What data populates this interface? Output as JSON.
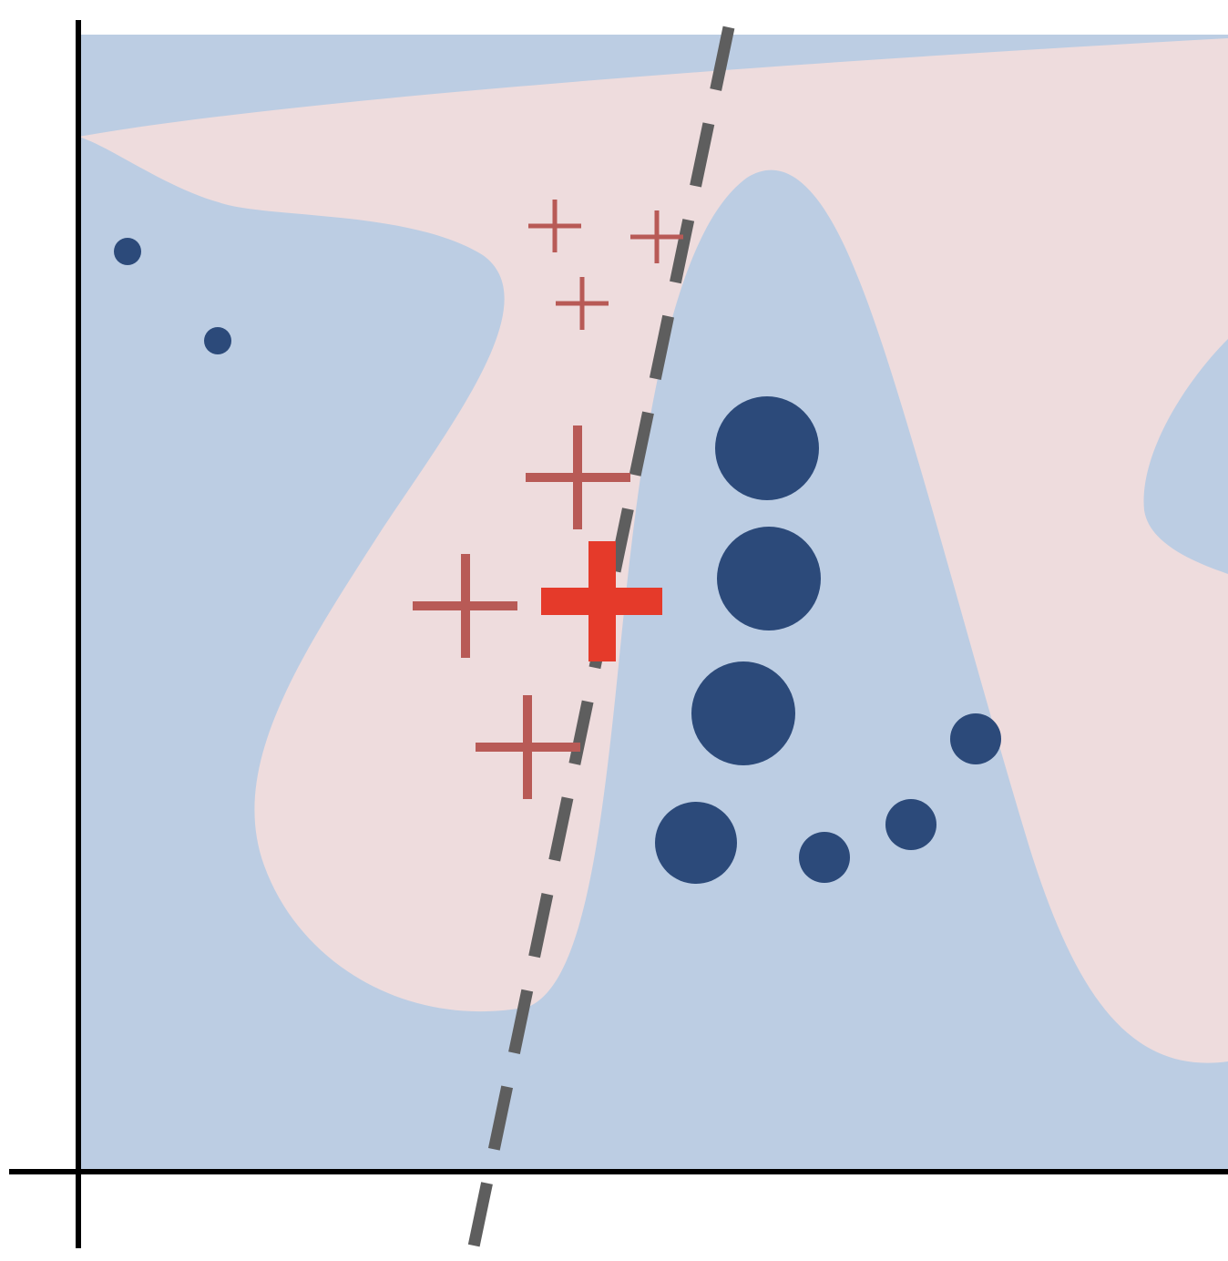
{
  "figure": {
    "description_free": true,
    "colors": {
      "background_region": "#bccde3",
      "positive_region": "#eedcdd",
      "negative_marker": "#2c4a7a",
      "positive_marker": "#b85a56",
      "query_marker": "#e53a2a",
      "boundary_line": "#5e5e5e",
      "axes": "#000000"
    },
    "regions": [
      {
        "class": "positive",
        "shape": "main-lobe"
      },
      {
        "class": "positive",
        "shape": "right-lobe"
      }
    ],
    "negative_points": [
      {
        "size": "small"
      },
      {
        "size": "small"
      },
      {
        "size": "large"
      },
      {
        "size": "large"
      },
      {
        "size": "large"
      },
      {
        "size": "large"
      },
      {
        "size": "medium"
      },
      {
        "size": "medium"
      },
      {
        "size": "medium"
      }
    ],
    "positive_points": [
      {
        "size": "small"
      },
      {
        "size": "small"
      },
      {
        "size": "small"
      },
      {
        "size": "large"
      },
      {
        "size": "large"
      },
      {
        "size": "large"
      }
    ],
    "query_point": {
      "label_shape": "plus"
    },
    "boundary": {
      "style": "dashed"
    }
  }
}
